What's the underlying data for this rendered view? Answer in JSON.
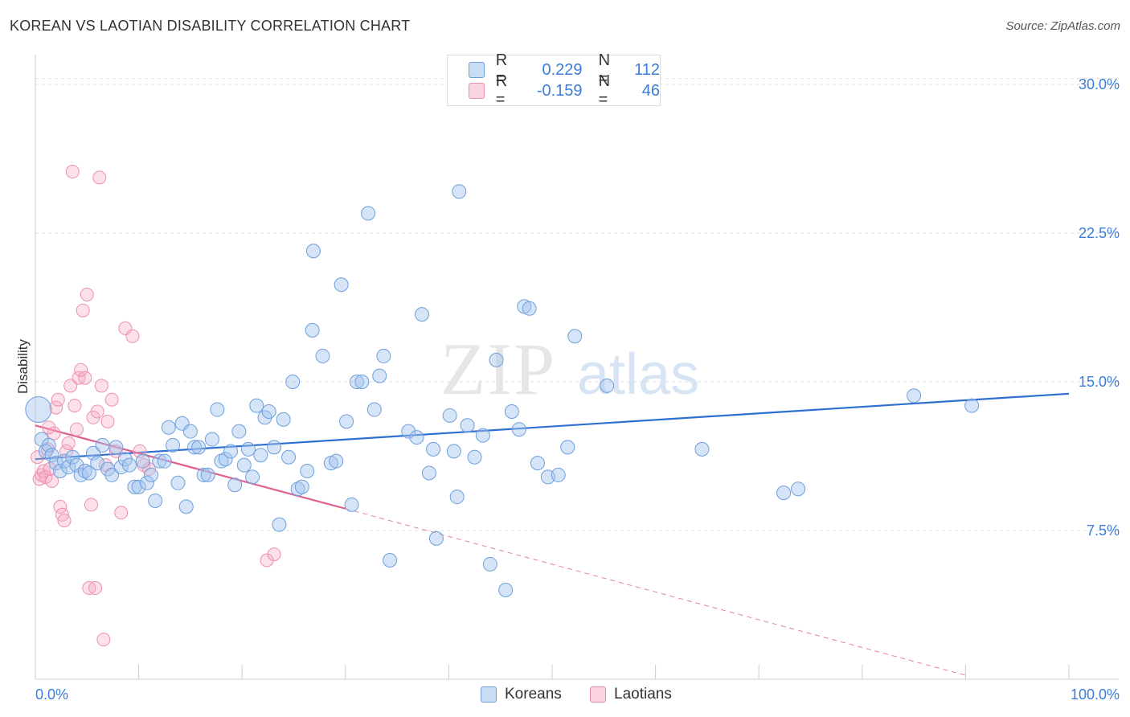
{
  "header": {
    "title": "KOREAN VS LAOTIAN DISABILITY CORRELATION CHART",
    "source": "Source: ZipAtlas.com"
  },
  "legend": {
    "rows": [
      {
        "r_label": "R =",
        "r_value": "0.229",
        "n_label": "N =",
        "n_value": "112"
      },
      {
        "r_label": "R =",
        "r_value": "-0.159",
        "n_label": "N =",
        "n_value": "46"
      }
    ]
  },
  "bottom_legend": {
    "items": [
      {
        "label": "Koreans"
      },
      {
        "label": "Laotians"
      }
    ]
  },
  "watermark": {
    "zip": "ZIP",
    "atlas": "atlas"
  },
  "colors": {
    "korean_fill": "rgba(163,196,240,0.45)",
    "korean_stroke": "#6f9fdb",
    "korean_line": "#2f6fd0",
    "laotian_fill": "rgba(245,170,195,0.35)",
    "laotian_stroke": "#ee8fae",
    "laotian_line": "#e0608f",
    "axis_label": "#3b7dd8",
    "grid": "#dddddd"
  },
  "chart_data": {
    "type": "scatter",
    "title": "KOREAN VS LAOTIAN DISABILITY CORRELATION CHART",
    "xlabel": "",
    "ylabel": "Disability",
    "xlim": [
      0,
      100
    ],
    "ylim": [
      0,
      31.5
    ],
    "x_tick_labels": [
      "0.0%",
      "100.0%"
    ],
    "y_ticks": [
      7.5,
      15.0,
      22.5,
      30.0
    ],
    "y_tick_labels": [
      "7.5%",
      "15.0%",
      "22.5%",
      "30.0%"
    ],
    "grid": true,
    "legend_position": "top-center",
    "series": [
      {
        "name": "Koreans",
        "r": 0.229,
        "n": 112,
        "trend": {
          "x": [
            0,
            100
          ],
          "y": [
            11.1,
            14.4
          ]
        },
        "points": [
          [
            0.3,
            13.6
          ],
          [
            0.6,
            12.1
          ],
          [
            1.0,
            11.5
          ],
          [
            1.3,
            11.8
          ],
          [
            1.6,
            11.3
          ],
          [
            2.0,
            10.9
          ],
          [
            2.4,
            10.5
          ],
          [
            2.8,
            11.0
          ],
          [
            3.2,
            10.7
          ],
          [
            3.6,
            11.2
          ],
          [
            4.0,
            10.8
          ],
          [
            4.4,
            10.3
          ],
          [
            4.8,
            10.5
          ],
          [
            5.2,
            10.4
          ],
          [
            5.6,
            11.4
          ],
          [
            6.0,
            10.9
          ],
          [
            6.5,
            11.8
          ],
          [
            7.0,
            10.6
          ],
          [
            7.4,
            10.3
          ],
          [
            7.8,
            11.7
          ],
          [
            8.3,
            10.7
          ],
          [
            8.7,
            11.1
          ],
          [
            9.1,
            10.8
          ],
          [
            9.6,
            9.7
          ],
          [
            10.0,
            9.7
          ],
          [
            10.4,
            11.0
          ],
          [
            10.8,
            9.9
          ],
          [
            11.2,
            10.3
          ],
          [
            11.6,
            9.0
          ],
          [
            12.0,
            11.0
          ],
          [
            12.5,
            11.0
          ],
          [
            12.9,
            12.7
          ],
          [
            13.3,
            11.8
          ],
          [
            13.8,
            9.9
          ],
          [
            14.2,
            12.9
          ],
          [
            14.6,
            8.7
          ],
          [
            15.0,
            12.5
          ],
          [
            15.4,
            11.7
          ],
          [
            15.8,
            11.7
          ],
          [
            16.3,
            10.3
          ],
          [
            16.7,
            10.3
          ],
          [
            17.1,
            12.1
          ],
          [
            17.6,
            13.6
          ],
          [
            18.0,
            11.0
          ],
          [
            18.4,
            11.1
          ],
          [
            18.9,
            11.5
          ],
          [
            19.3,
            9.8
          ],
          [
            19.7,
            12.5
          ],
          [
            20.2,
            10.8
          ],
          [
            20.6,
            11.6
          ],
          [
            21.0,
            10.2
          ],
          [
            21.4,
            13.8
          ],
          [
            21.8,
            11.3
          ],
          [
            22.2,
            13.2
          ],
          [
            22.6,
            13.5
          ],
          [
            23.1,
            11.7
          ],
          [
            23.6,
            7.8
          ],
          [
            24.0,
            13.1
          ],
          [
            24.5,
            11.2
          ],
          [
            24.9,
            15.0
          ],
          [
            25.4,
            9.6
          ],
          [
            25.8,
            9.7
          ],
          [
            26.3,
            10.5
          ],
          [
            26.8,
            17.6
          ],
          [
            26.9,
            21.6
          ],
          [
            27.8,
            16.3
          ],
          [
            28.6,
            10.9
          ],
          [
            29.1,
            11.0
          ],
          [
            29.6,
            19.9
          ],
          [
            30.1,
            13.0
          ],
          [
            30.6,
            8.8
          ],
          [
            31.1,
            15.0
          ],
          [
            31.6,
            15.0
          ],
          [
            32.2,
            23.5
          ],
          [
            32.8,
            13.6
          ],
          [
            33.3,
            15.3
          ],
          [
            33.7,
            16.3
          ],
          [
            34.3,
            6.0
          ],
          [
            36.1,
            12.5
          ],
          [
            36.9,
            12.2
          ],
          [
            37.4,
            18.4
          ],
          [
            38.1,
            10.4
          ],
          [
            38.5,
            11.6
          ],
          [
            38.8,
            7.1
          ],
          [
            40.1,
            13.3
          ],
          [
            40.5,
            11.5
          ],
          [
            40.8,
            9.2
          ],
          [
            41.0,
            24.6
          ],
          [
            41.8,
            12.8
          ],
          [
            42.5,
            11.2
          ],
          [
            43.3,
            12.3
          ],
          [
            44.0,
            5.8
          ],
          [
            44.6,
            16.1
          ],
          [
            45.5,
            4.5
          ],
          [
            46.1,
            13.5
          ],
          [
            46.8,
            12.6
          ],
          [
            47.3,
            18.8
          ],
          [
            47.8,
            18.7
          ],
          [
            48.6,
            10.9
          ],
          [
            49.6,
            10.2
          ],
          [
            50.6,
            10.3
          ],
          [
            51.5,
            11.7
          ],
          [
            52.2,
            17.3
          ],
          [
            55.3,
            14.8
          ],
          [
            64.5,
            11.6
          ],
          [
            72.4,
            9.4
          ],
          [
            73.8,
            9.6
          ],
          [
            85.0,
            14.3
          ],
          [
            90.6,
            13.8
          ]
        ]
      },
      {
        "name": "Laotians",
        "r": -0.159,
        "n": 46,
        "trend": {
          "x": [
            0,
            30
          ],
          "y": [
            12.8,
            8.6
          ]
        },
        "trend_dashed": {
          "x": [
            30,
            90
          ],
          "y": [
            8.6,
            0.2
          ]
        },
        "points": [
          [
            0.2,
            11.2
          ],
          [
            0.4,
            10.1
          ],
          [
            0.6,
            10.3
          ],
          [
            0.8,
            10.5
          ],
          [
            1.0,
            10.2
          ],
          [
            1.2,
            11.6
          ],
          [
            1.4,
            10.6
          ],
          [
            1.6,
            10.0
          ],
          [
            1.8,
            12.4
          ],
          [
            2.0,
            13.7
          ],
          [
            2.2,
            14.1
          ],
          [
            2.4,
            8.7
          ],
          [
            2.6,
            8.3
          ],
          [
            2.8,
            8.0
          ],
          [
            3.0,
            11.5
          ],
          [
            3.2,
            11.9
          ],
          [
            3.4,
            14.8
          ],
          [
            3.6,
            25.6
          ],
          [
            3.8,
            13.8
          ],
          [
            4.0,
            12.6
          ],
          [
            4.2,
            15.2
          ],
          [
            4.4,
            15.6
          ],
          [
            4.6,
            18.6
          ],
          [
            4.8,
            15.2
          ],
          [
            5.0,
            19.4
          ],
          [
            5.2,
            4.6
          ],
          [
            5.4,
            8.8
          ],
          [
            5.6,
            13.2
          ],
          [
            5.8,
            4.6
          ],
          [
            6.0,
            13.5
          ],
          [
            6.2,
            25.3
          ],
          [
            6.4,
            14.8
          ],
          [
            6.6,
            2.0
          ],
          [
            6.8,
            10.8
          ],
          [
            7.0,
            13.0
          ],
          [
            7.4,
            14.1
          ],
          [
            7.8,
            11.5
          ],
          [
            8.3,
            8.4
          ],
          [
            8.7,
            17.7
          ],
          [
            9.4,
            17.3
          ],
          [
            10.1,
            11.5
          ],
          [
            10.5,
            10.8
          ],
          [
            11.0,
            10.6
          ],
          [
            22.4,
            6.0
          ],
          [
            23.1,
            6.3
          ],
          [
            1.3,
            12.7
          ]
        ]
      }
    ]
  }
}
